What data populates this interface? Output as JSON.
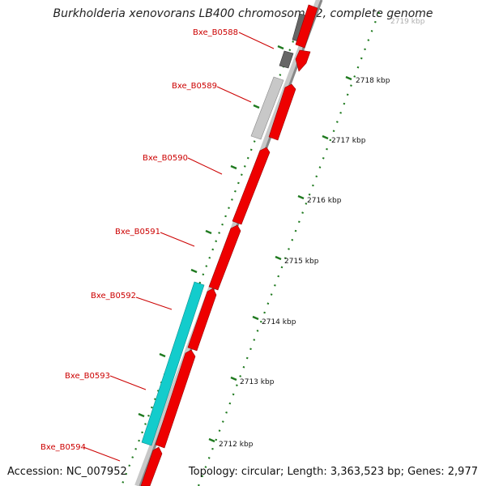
{
  "title": "Burkholderia xenovorans LB400 chromosome 2, complete genome",
  "accession": "Accession: NC_007952",
  "topology": "Topology: circular; Length: 3,363,523 bp; Genes: 2,977",
  "genes": [
    {
      "name": "Bxe_B0588",
      "color": "#ee0000"
    },
    {
      "name": "Bxe_B0589",
      "color": "#ee0000"
    },
    {
      "name": "Bxe_B0590",
      "color": "#ee0000"
    },
    {
      "name": "Bxe_B0591",
      "color": "#ee0000"
    },
    {
      "name": "Bxe_B0592",
      "color": "#ee0000"
    },
    {
      "name": "Bxe_B0593",
      "color": "#ee0000"
    },
    {
      "name": "Bxe_B0594",
      "color": "#ee0000"
    }
  ],
  "scale_ticks": [
    "2718 kbp",
    "2717 kbp",
    "2716 kbp",
    "2715 kbp",
    "2714 kbp",
    "2713 kbp",
    "2712 kbp",
    "2719 kbp"
  ],
  "colors": {
    "forward_gene": "#ee0000",
    "other_strand_gray": "#bbbbbb",
    "other_strand_dark": "#666666",
    "other_strand_cyan": "#11cccc",
    "backbone": "#999999",
    "gc_dots": "#227722",
    "labels": "#cc0000"
  }
}
